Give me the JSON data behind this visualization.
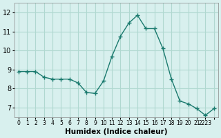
{
  "x": [
    0,
    1,
    2,
    3,
    4,
    5,
    6,
    7,
    8,
    9,
    10,
    11,
    12,
    13,
    14,
    15,
    16,
    17,
    18,
    19,
    20,
    21,
    22,
    23
  ],
  "y": [
    8.9,
    8.9,
    8.9,
    8.6,
    8.5,
    8.5,
    8.5,
    8.3,
    7.8,
    7.75,
    8.4,
    9.7,
    10.75,
    11.45,
    11.85,
    11.15,
    11.15,
    10.1,
    8.5,
    7.35,
    7.2,
    6.95,
    6.6,
    6.95
  ],
  "line_color": "#1a7a6e",
  "bg_color": "#d8f0ee",
  "grid_color": "#b0d8d0",
  "xlabel": "Humidex (Indice chaleur)",
  "ylim": [
    6.5,
    12.5
  ],
  "xlim": [
    -0.5,
    23.5
  ],
  "yticks": [
    7,
    8,
    9,
    10,
    11,
    12
  ],
  "xtick_positions": [
    0,
    1,
    2,
    3,
    4,
    5,
    6,
    7,
    8,
    9,
    10,
    11,
    12,
    13,
    14,
    15,
    16,
    17,
    18,
    19,
    20,
    21,
    22,
    23
  ],
  "xtick_labels": [
    "0",
    "1",
    "2",
    "3",
    "4",
    "5",
    "6",
    "7",
    "8",
    "9",
    "10",
    "11",
    "12",
    "13",
    "14",
    "15",
    "16",
    "17",
    "18",
    "19",
    "20",
    "21",
    "2223",
    ""
  ]
}
